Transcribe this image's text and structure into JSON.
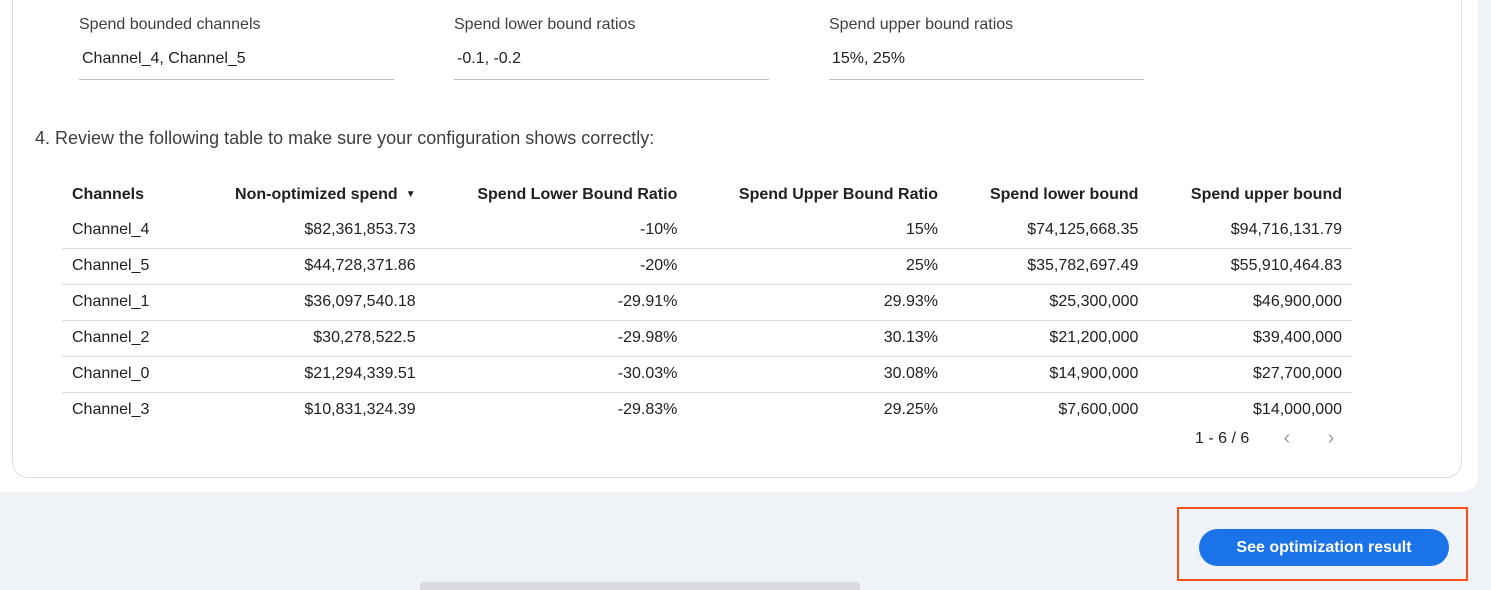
{
  "fields": [
    {
      "label": "Spend bounded channels",
      "value": "Channel_4, Channel_5"
    },
    {
      "label": "Spend lower bound ratios",
      "value": "-0.1, -0.2"
    },
    {
      "label": "Spend upper bound ratios",
      "value": "15%, 25%"
    }
  ],
  "step_text": "4. Review the following table to make sure your configuration shows correctly:",
  "table": {
    "headers": [
      "Channels",
      "Non-optimized spend",
      "Spend Lower Bound Ratio",
      "Spend Upper Bound Ratio",
      "Spend lower bound",
      "Spend upper bound"
    ],
    "sort_icon": "▼",
    "rows": [
      [
        "Channel_4",
        "$82,361,853.73",
        "-10%",
        "15%",
        "$74,125,668.35",
        "$94,716,131.79"
      ],
      [
        "Channel_5",
        "$44,728,371.86",
        "-20%",
        "25%",
        "$35,782,697.49",
        "$55,910,464.83"
      ],
      [
        "Channel_1",
        "$36,097,540.18",
        "-29.91%",
        "29.93%",
        "$25,300,000",
        "$46,900,000"
      ],
      [
        "Channel_2",
        "$30,278,522.5",
        "-29.98%",
        "30.13%",
        "$21,200,000",
        "$39,400,000"
      ],
      [
        "Channel_0",
        "$21,294,339.51",
        "-30.03%",
        "30.08%",
        "$14,900,000",
        "$27,700,000"
      ],
      [
        "Channel_3",
        "$10,831,324.39",
        "-29.83%",
        "29.25%",
        "$7,600,000",
        "$14,000,000"
      ]
    ]
  },
  "pagination": {
    "range": "1 - 6 / 6",
    "prev": "‹",
    "next": "›"
  },
  "button_label": "See optimization result",
  "colors": {
    "accent": "#1a73e8",
    "highlight": "#f4511e"
  }
}
